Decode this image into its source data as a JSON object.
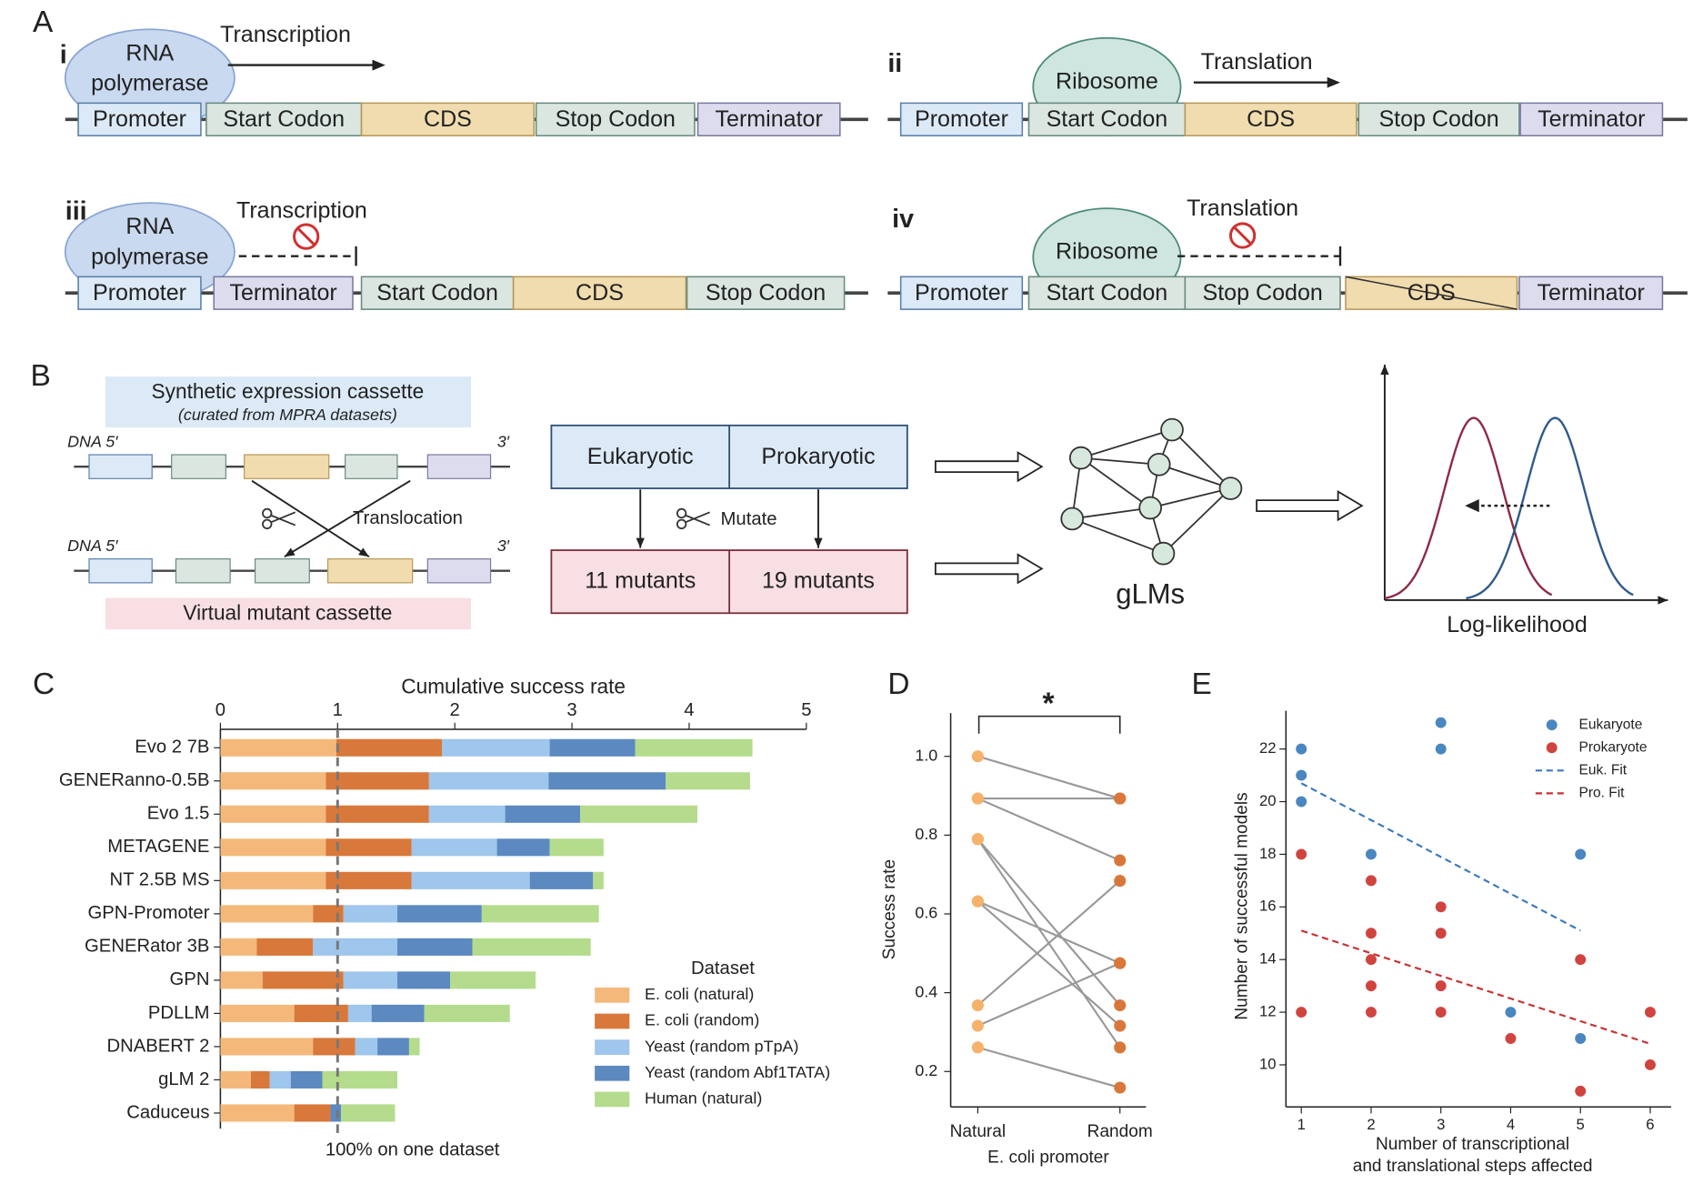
{
  "panel_labels": [
    "A",
    "B",
    "C",
    "D",
    "E"
  ],
  "panel_a": {
    "diagrams": [
      {
        "label": "i",
        "enzyme": [
          "RNA",
          "polymerase"
        ],
        "enzyme_color": "#c9d9f0",
        "process": "Transcription",
        "parts": [
          {
            "label": "Promoter",
            "color": "#dceaf7"
          },
          {
            "label": "Start Codon",
            "color": "#dbe6e1"
          },
          {
            "label": "CDS",
            "color": "#f0dcae"
          },
          {
            "label": "Stop Codon",
            "color": "#dbe6e1"
          },
          {
            "label": "Terminator",
            "color": "#dcdcee"
          }
        ]
      },
      {
        "label": "ii",
        "enzyme": [
          "Ribosome"
        ],
        "enzyme_color": "#cfe6e0",
        "process": "Translation",
        "parts": [
          {
            "label": "Promoter",
            "color": "#dceaf7"
          },
          {
            "label": "Start Codon",
            "color": "#dbe6e1"
          },
          {
            "label": "CDS",
            "color": "#f0dcae"
          },
          {
            "label": "Stop Codon",
            "color": "#dbe6e1"
          },
          {
            "label": "Terminator",
            "color": "#dcdcee"
          }
        ]
      },
      {
        "label": "iii",
        "enzyme": [
          "RNA",
          "polymerase"
        ],
        "enzyme_color": "#c9d9f0",
        "process": "Transcription",
        "parts": [
          {
            "label": "Promoter",
            "color": "#dceaf7"
          },
          {
            "label": "Terminator",
            "color": "#dcdcee"
          },
          {
            "label": "Start Codon",
            "color": "#dbe6e1"
          },
          {
            "label": "CDS",
            "color": "#f0dcae"
          },
          {
            "label": "Stop Codon",
            "color": "#dbe6e1"
          }
        ]
      },
      {
        "label": "iv",
        "enzyme": [
          "Ribosome"
        ],
        "enzyme_color": "#cfe6e0",
        "process": "Translation",
        "parts": [
          {
            "label": "Promoter",
            "color": "#dceaf7"
          },
          {
            "label": "Start Codon",
            "color": "#dbe6e1"
          },
          {
            "label": "Stop Codon",
            "color": "#dbe6e1"
          },
          {
            "label": "CDS",
            "color": "#f0dcae"
          },
          {
            "label": "Terminator",
            "color": "#dcdcee"
          }
        ]
      }
    ]
  },
  "panel_b": {
    "cassette_title": "Synthetic expression cassette",
    "cassette_subtitle": "(curated from MPRA datasets)",
    "strand_start": "DNA 5′",
    "strand_end": "3′",
    "translocation": "Translocation",
    "mutant_title": "Virtual mutant cassette",
    "groups": [
      "Eukaryotic",
      "Prokaryotic"
    ],
    "mutate": "Mutate",
    "mutants": [
      "11 mutants",
      "19 mutants"
    ],
    "model": "gLMs",
    "axis_label": "Log-likelihood"
  },
  "chart_data": [
    {
      "type": "bar",
      "orientation": "horizontal",
      "stacked": true,
      "xlabel": "Cumulative success rate",
      "categories": [
        "Evo 2 7B",
        "GENERanno-0.5B",
        "Evo 1.5",
        "METAGENE",
        "NT 2.5B MS",
        "GPN-Promoter",
        "GENERator 3B",
        "GPN",
        "PDLLM",
        "DNABERT 2",
        "gLM 2",
        "Caduceus"
      ],
      "series": [
        {
          "name": "E. coli (natural)",
          "color": "#f4b97a",
          "values": [
            0.99,
            0.9,
            0.9,
            0.9,
            0.9,
            0.79,
            0.31,
            0.36,
            0.63,
            0.79,
            0.26,
            0.63
          ]
        },
        {
          "name": "E. coli (random)",
          "color": "#d8783a",
          "values": [
            0.9,
            0.88,
            0.88,
            0.73,
            0.73,
            0.26,
            0.48,
            0.69,
            0.46,
            0.36,
            0.16,
            0.31
          ]
        },
        {
          "name": "Yeast (random pTpA)",
          "color": "#9fc6ec",
          "values": [
            0.92,
            1.02,
            0.65,
            0.73,
            1.01,
            0.46,
            0.72,
            0.46,
            0.2,
            0.19,
            0.18,
            0
          ]
        },
        {
          "name": "Yeast (random Abf1TATA)",
          "color": "#5b89c0",
          "values": [
            0.73,
            1.0,
            0.64,
            0.45,
            0.54,
            0.72,
            0.64,
            0.45,
            0.45,
            0.27,
            0.27,
            0.09
          ]
        },
        {
          "name": "Human (natural)",
          "color": "#b4dc8c",
          "values": [
            1.0,
            0.72,
            1.0,
            0.46,
            0.09,
            1.0,
            1.01,
            0.73,
            0.73,
            0.09,
            0.64,
            0.46
          ]
        }
      ],
      "xlim": [
        0,
        5
      ],
      "xticks": [
        0,
        1,
        2,
        3,
        4,
        5
      ],
      "legend_title": "Dataset",
      "reference_line": 1,
      "annotation": "100% on one dataset"
    },
    {
      "type": "line",
      "xlabel": "E. coli promoter",
      "ylabel": "Success rate",
      "categories": [
        "Natural",
        "Random"
      ],
      "colors": [
        "#f6b26b",
        "#d9773a"
      ],
      "line_color": "#999999",
      "series": [
        {
          "values": [
            1.0,
            0.893
          ]
        },
        {
          "values": [
            0.893,
            0.893
          ]
        },
        {
          "values": [
            0.893,
            0.736
          ]
        },
        {
          "values": [
            0.79,
            0.368
          ]
        },
        {
          "values": [
            0.79,
            0.261
          ]
        },
        {
          "values": [
            0.632,
            0.475
          ]
        },
        {
          "values": [
            0.632,
            0.316
          ]
        },
        {
          "values": [
            0.368,
            0.684
          ]
        },
        {
          "values": [
            0.316,
            0.475
          ]
        },
        {
          "values": [
            0.261,
            0.159
          ]
        }
      ],
      "ylim": [
        0.11,
        1.11
      ],
      "yticks": [
        0.2,
        0.4,
        0.6,
        0.8,
        {
          "value": 1,
          "label": "1.0"
        }
      ],
      "significance": "*"
    },
    {
      "type": "scatter",
      "xlabel": [
        "Number of transcriptional",
        "and translational steps affected"
      ],
      "ylabel": "Number of successful models",
      "series": [
        {
          "name": "Eukaryote",
          "color": "#4a86c0",
          "x": [
            1,
            1,
            1,
            2,
            3,
            3,
            4,
            5,
            5
          ],
          "y": [
            22,
            21,
            20,
            18,
            23,
            22,
            12,
            18,
            11
          ]
        },
        {
          "name": "Prokaryote",
          "color": "#d0443f",
          "x": [
            1,
            1,
            2,
            2,
            2,
            2,
            2,
            3,
            3,
            3,
            3,
            4,
            5,
            5,
            6,
            6
          ],
          "y": [
            18,
            12,
            17,
            15,
            14,
            13,
            12,
            16,
            15,
            13,
            12,
            11,
            14,
            9,
            12,
            10
          ]
        }
      ],
      "fits": [
        {
          "name": "Euk. Fit",
          "color": "#3a78c0",
          "x": [
            1,
            5
          ],
          "y": [
            20.7,
            15.1
          ]
        },
        {
          "name": "Pro. Fit",
          "color": "#c83030",
          "x": [
            1,
            6
          ],
          "y": [
            15.1,
            10.8
          ]
        }
      ],
      "xlim": [
        0.78,
        6.3
      ],
      "ylim": [
        8.4,
        23.45
      ],
      "xticks": [
        1,
        2,
        3,
        4,
        5,
        6
      ],
      "yticks": [
        10,
        12,
        14,
        16,
        18,
        20,
        22
      ]
    }
  ]
}
